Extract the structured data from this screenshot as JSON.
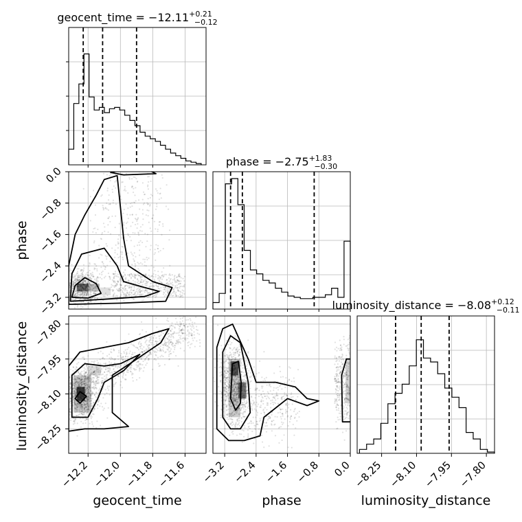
{
  "chart_data": {
    "type": "corner",
    "parameters": [
      "geocent_time",
      "phase",
      "luminosity_distance"
    ],
    "titles": [
      {
        "param": "geocent_time",
        "prefix": "geocent_time = ",
        "median": "−12.11",
        "plus": "+0.21",
        "minus": "−0.12"
      },
      {
        "param": "phase",
        "prefix": "phase = ",
        "median": "−2.75",
        "plus": "+1.83",
        "minus": "−0.30"
      },
      {
        "param": "luminosity_distance",
        "prefix": "luminosity_distance = ",
        "median": "−8.08",
        "plus": "+0.12",
        "minus": "−0.11"
      }
    ],
    "axes": {
      "geocent_time": {
        "range": [
          -12.32,
          -11.47
        ],
        "ticks": [
          -12.2,
          -12.0,
          -11.8,
          -11.6
        ],
        "tick_labels": [
          "−12.2",
          "−12.0",
          "−11.8",
          "−11.6"
        ]
      },
      "phase": {
        "range": [
          -3.5,
          0.0
        ],
        "ticks": [
          -3.2,
          -2.4,
          -1.6,
          -0.8,
          0.0
        ],
        "tick_labels": [
          "−3.2",
          "−2.4",
          "−1.6",
          "−0.8",
          "0.0"
        ]
      },
      "luminosity_distance": {
        "range": [
          -8.355,
          -7.765
        ],
        "ticks": [
          -8.25,
          -8.1,
          -7.95,
          -7.8
        ],
        "tick_labels": [
          "−8.25",
          "−8.10",
          "−7.95",
          "−7.80"
        ]
      }
    },
    "quantiles": {
      "geocent_time": [
        -12.23,
        -12.11,
        -11.9
      ],
      "phase": [
        -3.05,
        -2.75,
        -0.92
      ],
      "luminosity_distance": [
        -8.19,
        -8.08,
        -7.96
      ]
    },
    "histograms": {
      "geocent_time": [
        0.12,
        0.47,
        0.62,
        0.85,
        0.52,
        0.42,
        0.44,
        0.4,
        0.43,
        0.44,
        0.42,
        0.38,
        0.34,
        0.3,
        0.25,
        0.22,
        0.2,
        0.18,
        0.15,
        0.12,
        0.09,
        0.07,
        0.05,
        0.03,
        0.02,
        0.01
      ],
      "phase": [
        0.05,
        0.12,
        0.96,
        1.0,
        0.8,
        0.45,
        0.3,
        0.27,
        0.22,
        0.2,
        0.16,
        0.13,
        0.1,
        0.09,
        0.08,
        0.08,
        0.09,
        0.09,
        0.11,
        0.16,
        0.09,
        0.52
      ],
      "luminosity_distance": [
        0.03,
        0.07,
        0.11,
        0.23,
        0.38,
        0.46,
        0.53,
        0.67,
        0.87,
        0.73,
        0.7,
        0.61,
        0.5,
        0.43,
        0.35,
        0.16,
        0.11,
        0.03,
        0.01
      ]
    },
    "grid": true
  }
}
